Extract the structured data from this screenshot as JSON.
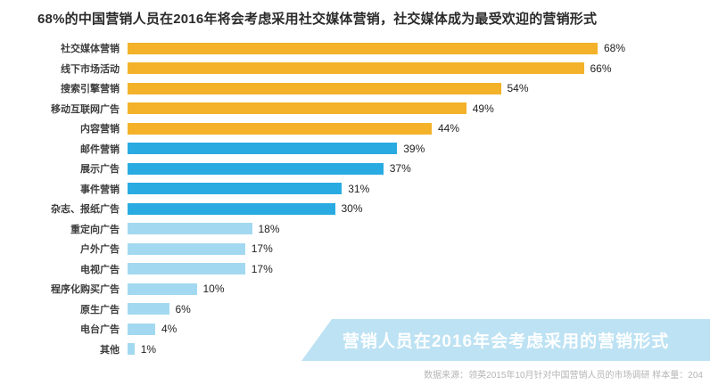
{
  "title": "68%的中国营销人员在2016年将会考虑采用社交媒体营销，社交媒体成为最受欢迎的营销形式",
  "chart_data": {
    "type": "bar",
    "orientation": "horizontal",
    "title": "68%的中国营销人员在2016年将会考虑采用社交媒体营销，社交媒体成为最受欢迎的营销形式",
    "categories": [
      "社交媒体营销",
      "线下市场活动",
      "搜索引擎营销",
      "移动互联网广告",
      "内容营销",
      "邮件营销",
      "展示广告",
      "事件营销",
      "杂志、报纸广告",
      "重定向广告",
      "户外广告",
      "电视广告",
      "程序化购买广告",
      "原生广告",
      "电台广告",
      "其他"
    ],
    "values": [
      68,
      66,
      54,
      49,
      44,
      39,
      37,
      31,
      30,
      18,
      17,
      17,
      10,
      6,
      4,
      1
    ],
    "value_labels": [
      "68%",
      "66%",
      "54%",
      "49%",
      "44%",
      "39%",
      "37%",
      "31%",
      "30%",
      "18%",
      "17%",
      "17%",
      "10%",
      "6%",
      "4%",
      "1%"
    ],
    "bar_colors": [
      "#F3B229",
      "#F3B229",
      "#F3B229",
      "#F3B229",
      "#F3B229",
      "#29ABE2",
      "#29ABE2",
      "#29ABE2",
      "#29ABE2",
      "#A3D9F0",
      "#A3D9F0",
      "#A3D9F0",
      "#A3D9F0",
      "#A3D9F0",
      "#A3D9F0",
      "#A3D9F0"
    ],
    "xlim": [
      0,
      70
    ],
    "grid": false,
    "legend": "none"
  },
  "banner": {
    "label": "营销人员在2016年会考虑采用的营销形式",
    "bg_color": "#BDE2F3",
    "text_color": "#FFFFFF"
  },
  "footnote": "数据来源：领英2015年10月针对中国营销人员的市场调研  样本量：204"
}
